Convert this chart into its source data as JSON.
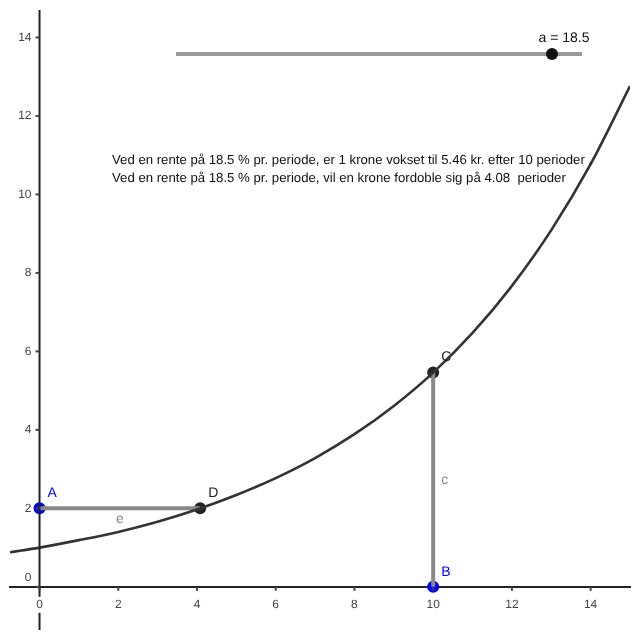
{
  "chart_data": {
    "type": "line",
    "xlim": [
      -0.75,
      15
    ],
    "ylim": [
      -1.1,
      14.7
    ],
    "xticks": [
      0,
      2,
      4,
      6,
      8,
      10,
      12,
      14
    ],
    "yticks": [
      0,
      2,
      4,
      6,
      8,
      10,
      12,
      14
    ],
    "line_style": "solid",
    "annotations": [
      "a = 18.5",
      "Ved en rente på 18.5 % pr. periode, er 1 krone vokset til 5.46 kr. efter 10 perioder .",
      "Ved en rente på 18.5 % pr. periode, vil en krone fordoble sig på 4.08  perioder"
    ],
    "series": [
      {
        "type": "line",
        "marker": "none",
        "color": "#333333",
        "x": [
          -0.75,
          0,
          1,
          2,
          3,
          4,
          5,
          6,
          7,
          8,
          9,
          10,
          11,
          12,
          13,
          14,
          15
        ],
        "values": [
          0.88,
          1,
          1.19,
          1.4,
          1.66,
          1.97,
          2.34,
          2.77,
          3.28,
          3.89,
          4.61,
          5.46,
          6.47,
          7.67,
          9.09,
          10.77,
          12.76
        ]
      },
      {
        "name": "e",
        "type": "line",
        "marker": "none",
        "color": "#888888",
        "x": [
          0,
          4.08
        ],
        "values": [
          2,
          2
        ]
      },
      {
        "name": "c",
        "type": "line",
        "marker": "none",
        "color": "#888888",
        "x": [
          10,
          10
        ],
        "values": [
          0,
          5.46
        ]
      },
      {
        "name": "A",
        "type": "scatter",
        "marker": "circle",
        "color": "#0000ff",
        "x": [
          0
        ],
        "values": [
          2
        ]
      },
      {
        "name": "D",
        "type": "scatter",
        "marker": "circle",
        "color": "#222222",
        "x": [
          4.08
        ],
        "values": [
          2
        ]
      },
      {
        "name": "C",
        "type": "scatter",
        "marker": "circle",
        "color": "#222222",
        "x": [
          10
        ],
        "values": [
          5.46
        ]
      },
      {
        "name": "B",
        "type": "scatter",
        "marker": "circle",
        "color": "#0000ff",
        "x": [
          10
        ],
        "values": [
          0
        ]
      }
    ]
  }
}
